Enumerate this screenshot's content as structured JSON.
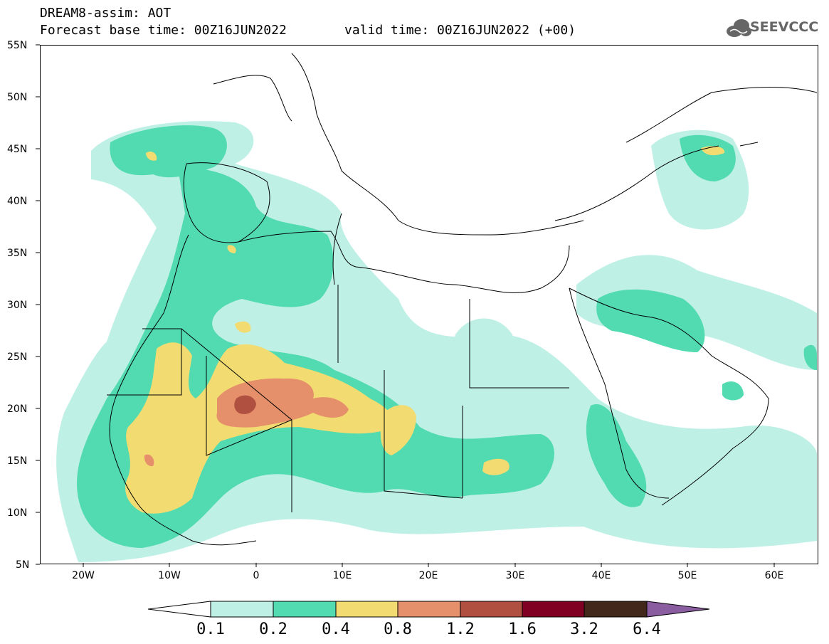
{
  "header": {
    "title_line1": "DREAM8-assim: AOT",
    "title_line2": "Forecast base time: 00Z16JUN2022",
    "valid_time": "valid time: 00Z16JUN2022 (+00)",
    "logo_text": "SEEVCCC"
  },
  "axes": {
    "lat_ticks": [
      "55N",
      "50N",
      "45N",
      "40N",
      "35N",
      "30N",
      "25N",
      "20N",
      "15N",
      "10N",
      "5N"
    ],
    "lon_ticks": [
      "20W",
      "10W",
      "0",
      "10E",
      "20E",
      "30E",
      "40E",
      "50E",
      "60E"
    ],
    "lat_range": [
      5,
      55
    ],
    "lon_range": [
      -25,
      65
    ]
  },
  "colorbar": {
    "labels": [
      "0.1",
      "0.2",
      "0.4",
      "0.8",
      "1.2",
      "1.6",
      "3.2",
      "6.4"
    ],
    "colors": [
      "#bff0e6",
      "#52dbb0",
      "#f2dc72",
      "#e5906a",
      "#b05041",
      "#800023",
      "#42281a",
      "#8a5ca0"
    ]
  },
  "icons": {
    "logo": "cloud-logo-icon"
  }
}
